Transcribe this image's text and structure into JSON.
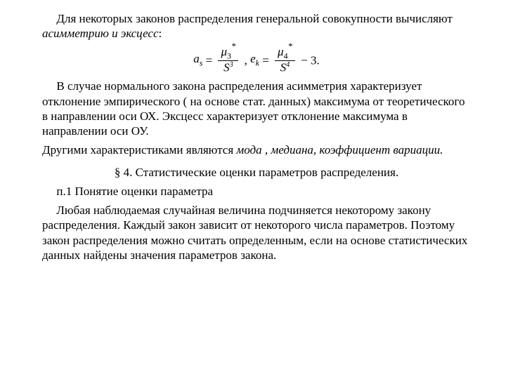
{
  "p1_a": "Для некоторых законов распределения генеральной совокупности вычисляют ",
  "p1_b": "асимметрию и эксцесс",
  "p1_c": ":",
  "formula": {
    "a_sym": "a",
    "a_sub": "s",
    "eq": " = ",
    "mu": "μ",
    "m3_sub": "3",
    "star": "*",
    "S": "S",
    "pow3": "3",
    "comma": ",   ",
    "e_sym": "e",
    "e_sub": "k",
    "m4_sub": "4",
    "pow4": "4",
    "minus3": " − 3."
  },
  "p2": "В случае нормального закона распределения асимметрия характеризует отклонение эмпирического ( на основе стат. данных) максимума от теоретического в направлении оси ОХ. Эксцесс характеризует отклонение максимума в направлении оси ОУ.",
  "p3_a": "Другими характеристиками являются ",
  "p3_b": "мода , медиана, коэффициент вариации.",
  "section": "§ 4. Статистические оценки параметров распределения.",
  "p4": "п.1 Понятие оценки параметра",
  "p5": "Любая наблюдаемая случайная величина подчиняется некоторому закону распределения. Каждый закон зависит от некоторого числа параметров. Поэтому закон распределения можно считать определенным, если на основе статистических данных найдены значения параметров закона."
}
